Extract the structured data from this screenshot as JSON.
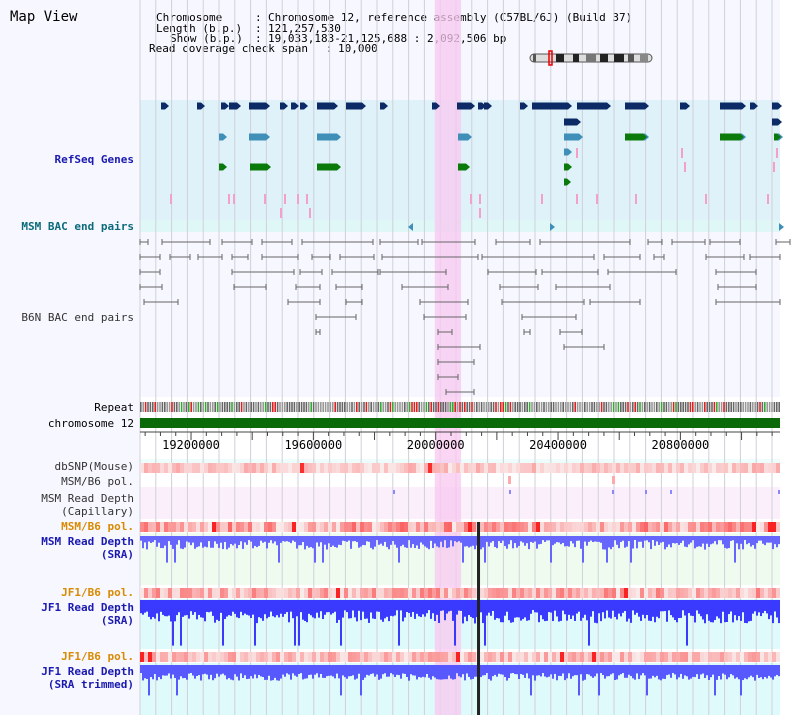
{
  "page": {
    "title": "Map View"
  },
  "info": {
    "chromosome_label": "Chromosome",
    "chromosome_value": "Chromosome 12, reference assembly (C57BL/6J) (Build 37)",
    "length_label": "Length (b.p.)",
    "length_value": "121,257,530",
    "show_label": "Show (b.p.)",
    "show_value": "19,033,183-21,125,688 : 2,092,506 bp",
    "coverage_label": "Read coverage check span",
    "coverage_value": "10,000"
  },
  "tracks": {
    "refseq": "RefSeq Genes",
    "msm_bac": "MSM BAC end pairs",
    "b6n_bac": "B6N BAC end pairs",
    "repeat": "Repeat",
    "chromosome": "chromosome 12",
    "dbsnp": "dbSNP(Mouse)",
    "msm_b6_pol_1": "MSM/B6 pol.",
    "msm_read_depth_cap_1": "MSM Read Depth",
    "msm_read_depth_cap_2": "(Capillary)",
    "msm_b6_pol_2": "MSM/B6 pol.",
    "msm_read_depth_sra_1": "MSM Read Depth",
    "msm_read_depth_sra_2": "(SRA)",
    "jf1_b6_pol_1": "JF1/B6 pol.",
    "jf1_read_depth_sra_1": "JF1 Read Depth",
    "jf1_read_depth_sra_2": "(SRA)",
    "jf1_b6_pol_2": "JF1/B6 pol.",
    "jf1_read_depth_trim_1": "JF1 Read Depth",
    "jf1_read_depth_trim_2": "(SRA trimmed)"
  },
  "colors": {
    "genes_dark": "#0b2a66",
    "genes_teal": "#3f8fb8",
    "genes_green": "#0a7a0a",
    "pink_marks": "#f4a0c8",
    "highlight": "#f8c8f0",
    "depth_blue": "#4a4aff",
    "chromosome_bar": "#0a6a0a",
    "label_blue": "#1a1ab0",
    "label_orange": "#d88a00",
    "label_teal": "#0b6b7a"
  },
  "chart_data": {
    "type": "genome-browser",
    "xlim": [
      19033183,
      21125688
    ],
    "x_ticks": [
      19200000,
      19600000,
      20000000,
      20400000,
      20800000
    ],
    "x_tick_labels": [
      "19200000",
      "19600000",
      "20000000",
      "20400000",
      "20800000"
    ],
    "highlight_region": [
      19997000,
      20083000
    ],
    "marker_position": 20140000
  }
}
